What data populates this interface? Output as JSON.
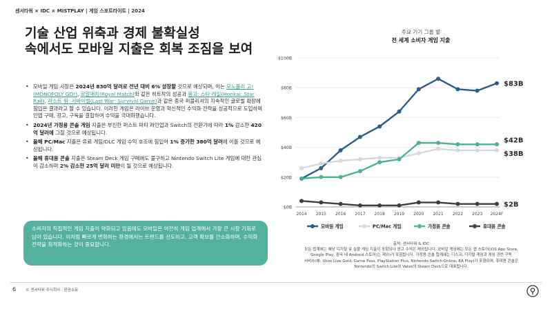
{
  "header": {
    "text": "센서타워 × IDC × MISTPLAY | 게임 스포트라이트 | 2024"
  },
  "title": {
    "line1": "기술 산업 위축과 경제 불확실성",
    "line2": "속에서도 모바일 지출은 회복 조짐을 보여"
  },
  "bullets": {
    "b1": {
      "t1": "모바일 게임 시장은 ",
      "bold1": "2024년 830억 달러로 전년 대비 6% 성장할",
      "t2": " 것으로 예상되며, 이는 ",
      "link1": "모노폴리 고!(MONOPOLY GO!)",
      "t3": ", ",
      "link2": "로얄매치(Royal Match)",
      "t4": "와 같은 히트작의 성공과 ",
      "link3": "붕괴: 스타 레일(Honkai: Star Rail)",
      "t5": ", ",
      "link4": "라스트 워: 서바이벌(Last War: Survival Game)",
      "t6": "과 같은 중국 퍼블리셔의 지속적인 글로벌 확장에 힘입은 결과라고 할 수 있습니다. 이러한 게임은 라이브 운영과 혁신적인 수익화 전략을 성공적으로 도입하며 인앱 구매, 광고, 구독을 결합하여 수익을 극대화했습니다."
    },
    "b2": {
      "bold1": "2024년 가정용 콘솔 게임",
      "t1": " 지출은 부진한 퍼스트 파티 라인업과 Switch의 전환기에 따라 ",
      "bold2": "1%",
      "t2": " 감소한 ",
      "bold3": "420억 달러에",
      "t3": " 그칠 것으로 예상됩니다."
    },
    "b3": {
      "bold1": "올해 PC/Mac",
      "t1": " 지출은 유료 게임/DLC 게임 수익 호조에 힘입어 ",
      "bold2": "1% 증가한 380억 달러",
      "t2": "에 이를 것으로 예상됩니다."
    },
    "b4": {
      "bold1": "올해 휴대용 콘솔",
      "t1": " 지출은 Steam Deck 게임 구매에도 불구하고 Nintendo Switch Lite 게임에 대한 관심이 감소하며 ",
      "bold2": "2% 감소한 25억 달러 미만",
      "t2": "이 될 것으로 예상됩니다."
    }
  },
  "callout": {
    "text": "소비자의 직접적인 게임 지출이 약화되고 있음에도 모바일은 여전히 게임 업계에서 가장 큰 시장 기회로 남아 있습니다. 이처럼 빠르게 변화하는 환경에서는 트렌드를 선도하고, 고객 확보를 간소화하며, 수익화 전략을 최적화하는 것이 중요합니다."
  },
  "chart_header": {
    "subtitle": "주요 기기 그룹 별",
    "title": "전 세계 소비자 게임 지출"
  },
  "chart_data": {
    "type": "line",
    "title": "전 세계 소비자 게임 지출",
    "subtitle": "주요 기기 그룹 별",
    "categories": [
      "2014",
      "2015",
      "2016",
      "2017",
      "2018",
      "2019",
      "2020",
      "2021",
      "2022",
      "2023",
      "2024F"
    ],
    "y_ticks": [
      "$0B",
      "$20B",
      "$40B",
      "$60B",
      "$80B",
      "$100B"
    ],
    "ylim": [
      0,
      100
    ],
    "series": [
      {
        "name": "모바일 게임",
        "color": "#2b5d8a",
        "values": [
          19,
          26,
          38,
          47,
          54,
          64,
          79,
          86,
          79,
          78,
          83
        ],
        "end_label": "$83B"
      },
      {
        "name": "PC/Mac 게임",
        "color": "#d5d8dc",
        "values": [
          26,
          29,
          31,
          32,
          33,
          33,
          36,
          39,
          38,
          38,
          38
        ],
        "end_label": "$38B"
      },
      {
        "name": "가정용 콘솔",
        "color": "#4fae9b",
        "values": [
          19,
          20,
          20,
          24,
          30,
          32,
          43,
          43,
          42,
          42,
          42
        ],
        "end_label": "$42B"
      },
      {
        "name": "휴대용 콘솔",
        "color": "#3f3f3f",
        "values": [
          4,
          3,
          2,
          1,
          1,
          1,
          3,
          3,
          2,
          2,
          2
        ],
        "end_label": "$2B"
      }
    ]
  },
  "source": {
    "line1": "출처: 센서타워 & IDC",
    "line2": "모든 합계에는 해당 디지털 및 실물 게임 지출이 포함되나 광고 수익은 제외됩니다. 모바일 게임에는 모든 앱 스토어(iOS App Store,",
    "line3": "Google Play, 중국 내 Android 스토어)는 제외)가 포함됩니다. 가정용 콘솔 합계에는 디스크, 디지털 게임과 게임 관련 구독",
    "line4": "서비스(예: Xbox Live Gold, Game Pass, PlayStation Plus, Nintendo Switch Online, EA Play)가 포함되며, 휴대용 콘솔은",
    "line5": "Nintendo의 Switch Lite와 Valve의 Steam Deck으로 대표됩니다."
  },
  "footer": {
    "page": "6",
    "copyright": "© 센서타워 주식회사 · 판권소유"
  }
}
